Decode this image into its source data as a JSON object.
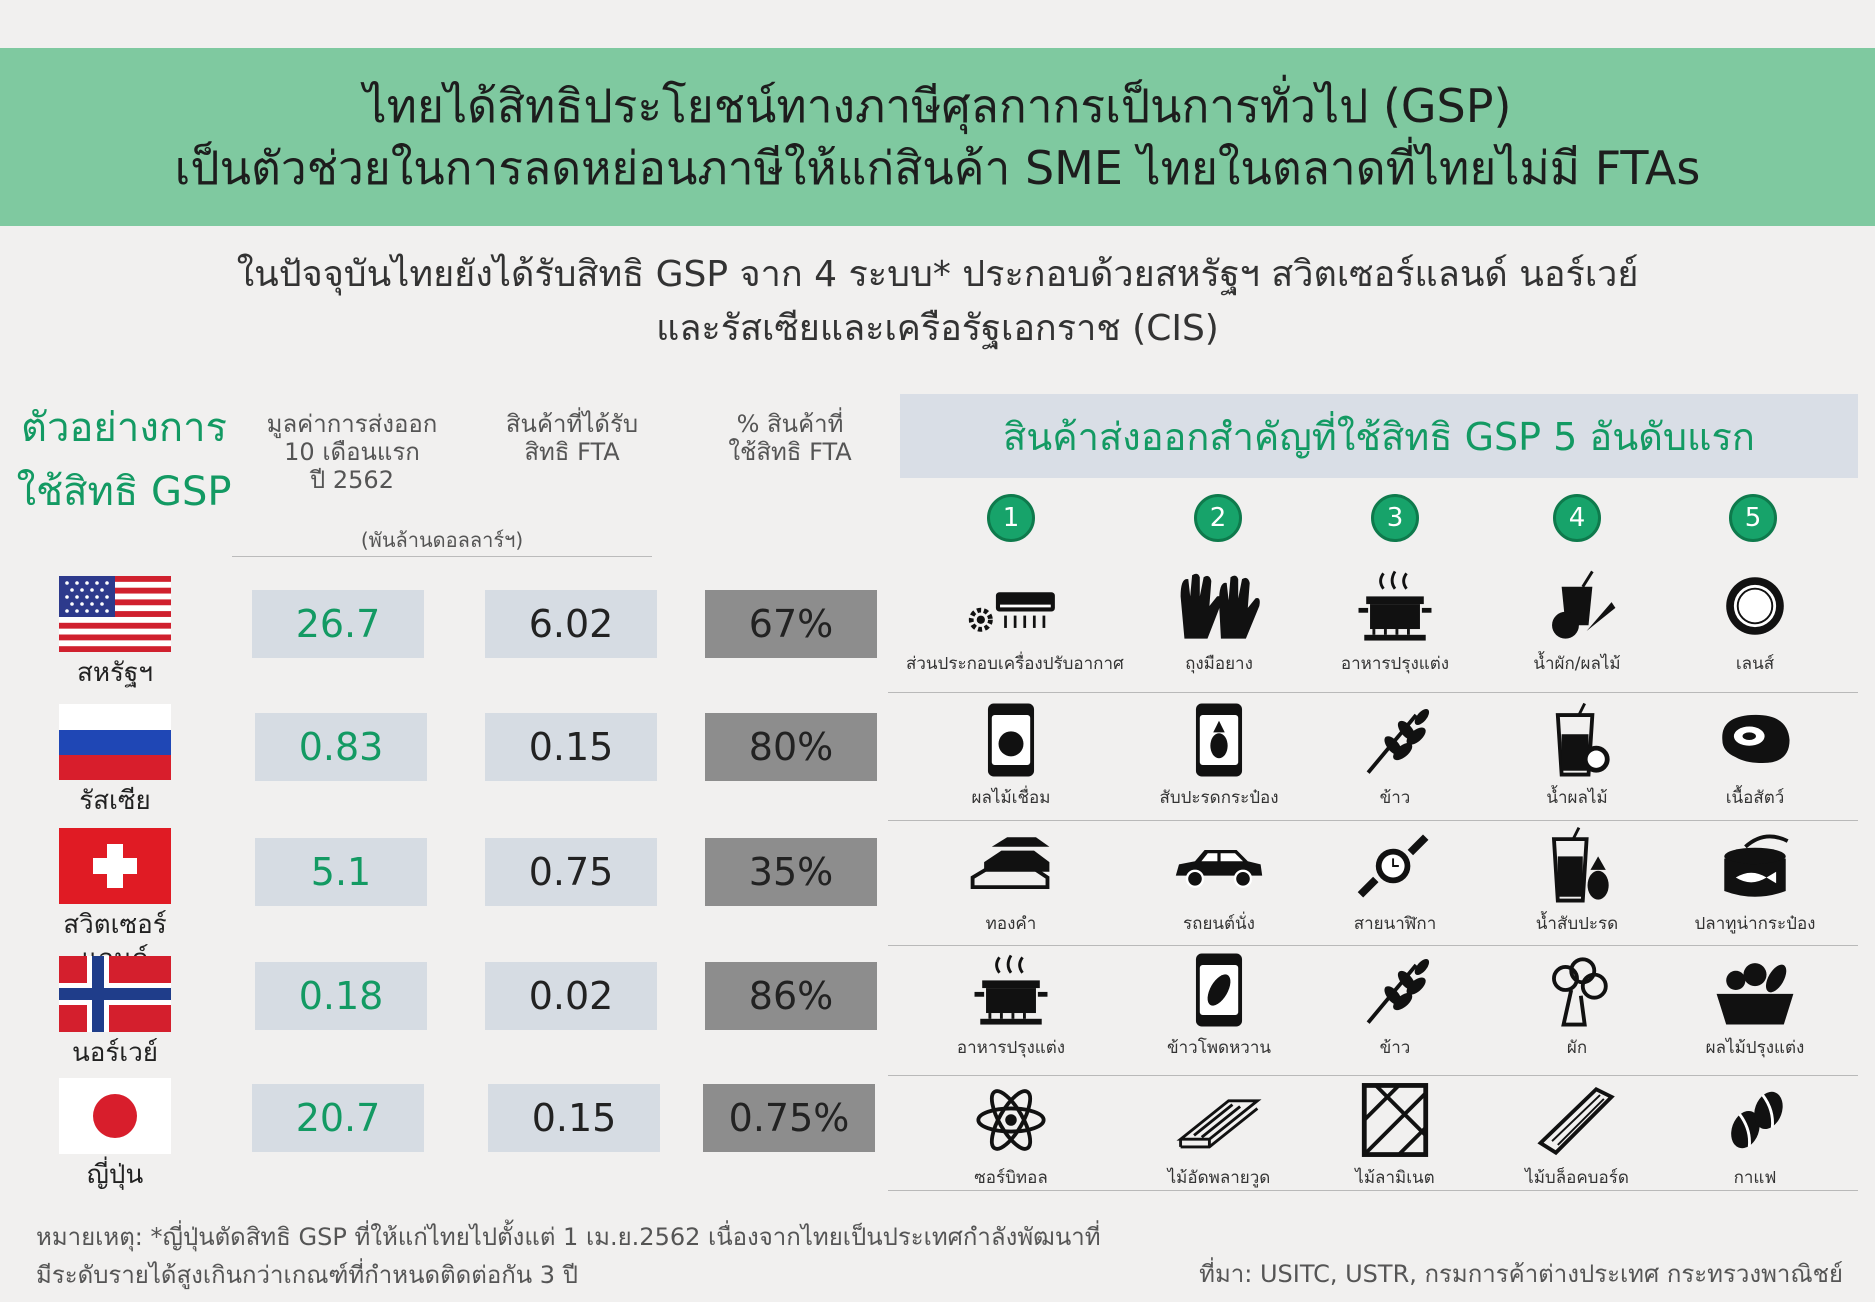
{
  "banner": {
    "line1": "ไทยได้สิทธิประโยชน์ทางภาษีศุลกากรเป็นการทั่วไป (GSP)",
    "line2": "เป็นตัวช่วยในการลดหย่อนภาษีให้แก่สินค้า SME ไทยในตลาดที่ไทยไม่มี FTAs"
  },
  "subtitle": {
    "line1": "ในปัจจุบันไทยยังได้รับสิทธิ GSP จาก 4 ระบบ* ประกอบด้วยสหรัฐฯ สวิตเซอร์แลนด์ นอร์เวย์",
    "line2": "และรัสเซียและเครือรัฐเอกราช (CIS)"
  },
  "side_title": {
    "line1": "ตัวอย่างการ",
    "line2": "ใช้สิทธิ GSP"
  },
  "columns": {
    "export_value": {
      "line1": "มูลค่าการส่งออก",
      "line2": "10 เดือนแรก",
      "line3": "ปี 2562"
    },
    "fta_goods": {
      "line1": "สินค้าที่ได้รับ",
      "line2": "สิทธิ FTA"
    },
    "fta_percent": {
      "line1": "% สินค้าที่",
      "line2": "ใช้สิทธิ FTA"
    },
    "unit": "(พันล้านดอลลาร์ฯ)"
  },
  "countries": [
    {
      "name": "สหรัฐฯ",
      "export_value": "26.7",
      "fta_goods": "6.02",
      "fta_percent": "67%"
    },
    {
      "name": "รัสเซีย",
      "export_value": "0.83",
      "fta_goods": "0.15",
      "fta_percent": "80%"
    },
    {
      "name": "สวิตเซอร์แลนด์",
      "export_value": "5.1",
      "fta_goods": "0.75",
      "fta_percent": "35%"
    },
    {
      "name": "นอร์เวย์",
      "export_value": "0.18",
      "fta_goods": "0.02",
      "fta_percent": "86%"
    },
    {
      "name": "ญี่ปุ่น",
      "export_value": "20.7",
      "fta_goods": "0.15",
      "fta_percent": "0.75%"
    }
  ],
  "products_header": "สินค้าส่งออกสำคัญที่ใช้สิทธิ GSP 5 อันดับแรก",
  "ranks": [
    "1",
    "2",
    "3",
    "4",
    "5"
  ],
  "products": [
    [
      {
        "label": "ส่วนประกอบเครื่องปรับอากาศ",
        "icon": "air-conditioner-gear-icon"
      },
      {
        "label": "ถุงมือยาง",
        "icon": "rubber-gloves-icon"
      },
      {
        "label": "อาหารปรุงแต่ง",
        "icon": "cooking-pot-icon"
      },
      {
        "label": "น้ำผัก/ผลไม้",
        "icon": "fruit-vegetable-juice-icon"
      },
      {
        "label": "เลนส์",
        "icon": "lens-icon"
      }
    ],
    [
      {
        "label": "ผลไม้เชื่อม",
        "icon": "candied-fruit-jar-icon"
      },
      {
        "label": "สับปะรดกระป๋อง",
        "icon": "canned-pineapple-icon"
      },
      {
        "label": "ข้าว",
        "icon": "rice-grain-icon"
      },
      {
        "label": "น้ำผลไม้",
        "icon": "fruit-juice-icon"
      },
      {
        "label": "เนื้อสัตว์",
        "icon": "meat-icon"
      }
    ],
    [
      {
        "label": "ทองคำ",
        "icon": "gold-bars-icon"
      },
      {
        "label": "รถยนต์นั่ง",
        "icon": "car-icon"
      },
      {
        "label": "สายนาฬิกา",
        "icon": "watch-icon"
      },
      {
        "label": "น้ำสับปะรด",
        "icon": "pineapple-juice-icon"
      },
      {
        "label": "ปลาทูน่ากระป๋อง",
        "icon": "canned-tuna-icon"
      }
    ],
    [
      {
        "label": "อาหารปรุงแต่ง",
        "icon": "cooking-pot-icon"
      },
      {
        "label": "ข้าวโพดหวาน",
        "icon": "canned-corn-icon"
      },
      {
        "label": "ข้าว",
        "icon": "rice-grain-icon"
      },
      {
        "label": "ผัก",
        "icon": "broccoli-icon"
      },
      {
        "label": "ผลไม้ปรุงแต่ง",
        "icon": "fruit-basket-icon"
      }
    ],
    [
      {
        "label": "ซอร์บิทอล",
        "icon": "atom-icon"
      },
      {
        "label": "ไม้อัดพลายวูด",
        "icon": "plywood-icon"
      },
      {
        "label": "ไม้ลามิเนต",
        "icon": "laminate-wood-icon"
      },
      {
        "label": "ไม้บล็อคบอร์ด",
        "icon": "blockboard-icon"
      },
      {
        "label": "กาแฟ",
        "icon": "coffee-beans-icon"
      }
    ]
  ],
  "note": {
    "line1": "หมายเหตุ: *ญี่ปุ่นตัดสิทธิ GSP ที่ให้แก่ไทยไปตั้งแต่ 1 เม.ย.2562 เนื่องจากไทยเป็นประเทศกำลังพัฒนาที่",
    "line2": "มีระดับรายได้สูงเกินกว่าเกณฑ์ที่กำหนดติดต่อกัน 3 ปี"
  },
  "source": "ที่มา: USITC, USTR, กรมการค้าต่างประเทศ กระทรวงพาณิชย์",
  "colors": {
    "banner": "#7fc9a0",
    "accent_green": "#139a63",
    "light_cell": "#d6dce3",
    "dark_cell": "#8d8d8d"
  }
}
